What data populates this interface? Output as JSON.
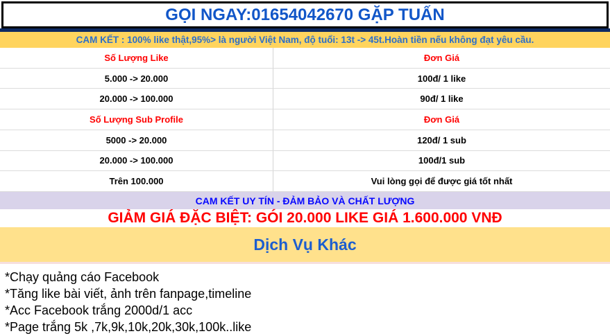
{
  "header": {
    "title": "GỌI NGAY:01654042670 GẶP TUẤN"
  },
  "commitment_bar": {
    "text": "CAM KẾT : 100% like thật,95%> là người Việt Nam, độ tuổi: 13t -> 45t.Hoàn tiền nếu không đạt yêu cầu."
  },
  "price_table": {
    "rows": [
      {
        "type": "header",
        "left": "Số Lượng Like",
        "right": "Đơn Giá"
      },
      {
        "type": "data",
        "left": "5.000 -> 20.000",
        "right": "100đ/ 1 like"
      },
      {
        "type": "data",
        "left": "20.000 -> 100.000",
        "right": "90đ/ 1 like"
      },
      {
        "type": "header",
        "left": "Số Lượng Sub Profile",
        "right": "Đơn Giá"
      },
      {
        "type": "data",
        "left": "5000 -> 20.000",
        "right": "120đ/ 1 sub"
      },
      {
        "type": "data",
        "left": "20.000 -> 100.000",
        "right": "100đ/1 sub"
      },
      {
        "type": "data",
        "left": "Trên 100.000",
        "right": "Vui lòng gọi để được giá tốt nhất"
      }
    ]
  },
  "trust_bar": {
    "text": "CAM KẾT UY TÍN - ĐẢM BẢO VÀ CHẤT LƯỢNG"
  },
  "promo": {
    "text": "GIẢM GIÁ ĐẶC BIỆT: GÓI 20.000 LIKE GIÁ 1.600.000 VNĐ"
  },
  "services": {
    "title": "Dịch Vụ Khác",
    "items": [
      "*Chạy quảng cáo Facebook",
      "*Tăng like bài viết, ảnh trên fanpage,timeline",
      "*Acc Facebook trắng 2000d/1 acc",
      "*Page trắng 5k ,7k,9k,10k,20k,30k,100k..like"
    ]
  },
  "colors": {
    "title_blue": "#1156c8",
    "navy_bar": "#0e2a63",
    "gold_bar_bg": "#ffd45e",
    "gold_bar_text": "#2d6fc9",
    "table_header_red": "#ff0000",
    "grid_line": "#dcdcdc",
    "lavender_bg": "#d9d3ea",
    "lavender_text": "#0808ff",
    "promo_red": "#ff0000",
    "services_bg": "#ffe18c",
    "services_text": "#1c5ecf"
  }
}
